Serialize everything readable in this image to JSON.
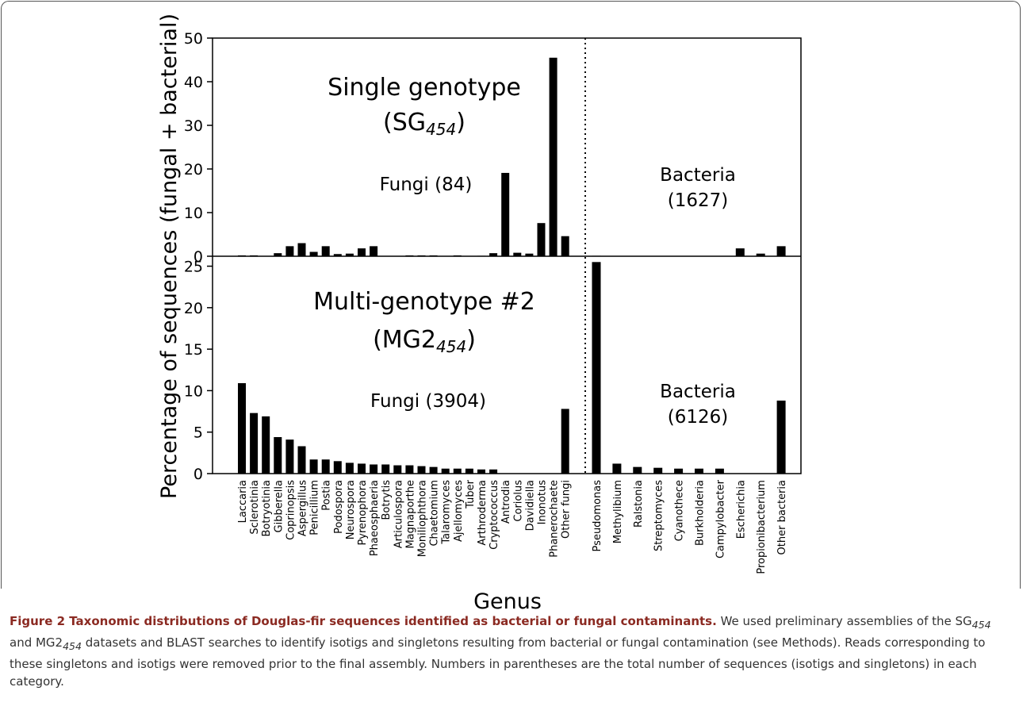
{
  "chart_data": [
    {
      "type": "bar",
      "title": "Single genotype",
      "subtitle_parts": [
        "(SG",
        "454",
        ")"
      ],
      "ylabel": "Percentage of sequences (fungal + bacterial)",
      "fungi_label": "Fungi (84)",
      "bacteria_label": [
        "Bacteria",
        "(1627)"
      ],
      "values": [
        0.2,
        0.2,
        0,
        0.7,
        2.3,
        3.0,
        1.0,
        2.3,
        0.5,
        0.6,
        1.8,
        2.3,
        0,
        0,
        0.2,
        0.2,
        0.2,
        0,
        0.2,
        0,
        0.1,
        0.7,
        19.1,
        0.8,
        0.6,
        7.6,
        45.5,
        4.6,
        0.1,
        0,
        0,
        0,
        0,
        0,
        0,
        1.8,
        0.6,
        2.3
      ],
      "color": "#000000",
      "ylim": [
        0,
        50
      ],
      "yticks": [
        0,
        10,
        20,
        30,
        40,
        50
      ]
    },
    {
      "type": "bar",
      "title": "Multi-genotype #2",
      "subtitle_parts": [
        "(MG2",
        "454",
        ")"
      ],
      "xlabel": "Genus",
      "fungi_label": "Fungi (3904)",
      "bacteria_label": [
        "Bacteria",
        "(6126)"
      ],
      "categories": [
        "Laccaria",
        "Sclerotinia",
        "Botryotinia",
        "Gibberella",
        "Coprinopsis",
        "Aspergillus",
        "Penicillium",
        "Postia",
        "Podospora",
        "Neurospora",
        "Pyrenophora",
        "Phaeosphaeria",
        "Botrytis",
        "Articulospora",
        "Magnaporthe",
        "Moniliophthora",
        "Chaetomium",
        "Talaromyces",
        "Ajellomyces",
        "Tuber",
        "Arthroderma",
        "Cryptococcus",
        "Antrodia",
        "Coriolus",
        "Davidiella",
        "Inonotus",
        "Phanerochaete",
        "Other fungi",
        "Pseudomonas",
        "Methylibium",
        "Ralstonia",
        "Streptomyces",
        "Cyanothece",
        "Burkholderia",
        "Campylobacter",
        "Escherichia",
        "Propionibacterium",
        "Other bacteria"
      ],
      "values": [
        10.9,
        7.3,
        6.9,
        4.4,
        4.1,
        3.3,
        1.7,
        1.7,
        1.5,
        1.3,
        1.2,
        1.1,
        1.1,
        1.0,
        1.0,
        0.9,
        0.8,
        0.6,
        0.6,
        0.6,
        0.5,
        0.5,
        0,
        0,
        0,
        0,
        0,
        7.8,
        25.5,
        1.2,
        0.8,
        0.7,
        0.6,
        0.6,
        0.6,
        0,
        0,
        8.8
      ],
      "color": "#000000",
      "ylim": [
        0,
        26.2
      ],
      "yticks": [
        0,
        5,
        10,
        15,
        20,
        25
      ]
    }
  ],
  "caption": {
    "title": "Figure 2 Taxonomic distributions of Douglas-fir sequences identified as bacterial or fungal contaminants.",
    "parts": [
      " We used preliminary assemblies of the SG",
      "454",
      " and MG2",
      "454",
      " datasets and BLAST searches to identify isotigs and singletons resulting from bacterial or fungal contamination (see Methods). Reads corresponding to these singletons and isotigs were removed prior to the final assembly. Numbers in parentheses are the total number of sequences (isotigs and singletons) in each category."
    ]
  }
}
